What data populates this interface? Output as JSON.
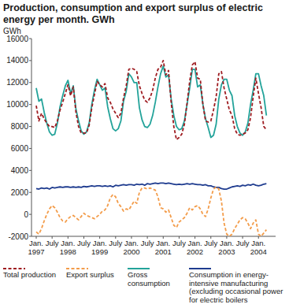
{
  "chart_data": {
    "type": "line",
    "title": "Production, consumption and export surplus of electric energy per month. GWh",
    "y_label": "GWh",
    "categories": [
      "Jan. 1997",
      null,
      null,
      null,
      null,
      null,
      "July",
      null,
      null,
      null,
      null,
      null,
      "Jan. 1998",
      null,
      null,
      null,
      null,
      null,
      "July",
      null,
      null,
      null,
      null,
      null,
      "Jan. 1999",
      null,
      null,
      null,
      null,
      null,
      "July",
      null,
      null,
      null,
      null,
      null,
      "Jan. 2000",
      null,
      null,
      null,
      null,
      null,
      "July",
      null,
      null,
      null,
      null,
      null,
      "Jan. 2001",
      null,
      null,
      null,
      null,
      null,
      "July",
      null,
      null,
      null,
      null,
      null,
      "Jan. 2002",
      null,
      null,
      null,
      null,
      null,
      "July",
      null,
      null,
      null,
      null,
      null,
      "Jan. 2003",
      null,
      null,
      null,
      null,
      null,
      "July",
      null,
      null,
      null,
      null,
      null,
      "Jan. 2004",
      null,
      null,
      null
    ],
    "series": [
      {
        "name": "Total production",
        "color": "#9e1b20",
        "line_style": "dashed",
        "values": [
          9900,
          8500,
          9200,
          8700,
          8300,
          8000,
          8000,
          7900,
          8500,
          9500,
          10200,
          11000,
          11800,
          10800,
          11600,
          9300,
          8000,
          7400,
          7400,
          7400,
          8100,
          9700,
          10900,
          12100,
          11800,
          11600,
          11900,
          10600,
          10200,
          9600,
          9200,
          8800,
          9200,
          10600,
          11700,
          13200,
          13300,
          13200,
          13000,
          11700,
          11000,
          10400,
          10200,
          10600,
          11300,
          12400,
          13200,
          13400,
          14000,
          12700,
          13100,
          10200,
          8000,
          6800,
          7000,
          7300,
          8200,
          10100,
          12100,
          13600,
          13900,
          12400,
          12300,
          10000,
          8500,
          8400,
          8500,
          9500,
          10700,
          12800,
          13000,
          11500,
          10500,
          9500,
          9000,
          7800,
          7300,
          7200,
          7300,
          7400,
          7700,
          8800,
          10700,
          12400,
          11000,
          9700,
          8000,
          7700
        ]
      },
      {
        "name": "Export surplus",
        "color": "#f39c4a",
        "line_style": "dashed",
        "values": [
          -1600,
          -1800,
          -1300,
          -600,
          0,
          500,
          800,
          600,
          200,
          -300,
          -600,
          -700,
          -400,
          -200,
          -100,
          -300,
          -500,
          -200,
          100,
          -100,
          -200,
          -300,
          -400,
          -200,
          0,
          300,
          400,
          800,
          1500,
          1800,
          1600,
          1000,
          700,
          300,
          500,
          400,
          800,
          1200,
          1000,
          2000,
          2400,
          2400,
          2300,
          2400,
          2300,
          2200,
          1600,
          600,
          500,
          200,
          400,
          -300,
          -1000,
          -1200,
          -700,
          -500,
          -300,
          100,
          600,
          400,
          700,
          800,
          500,
          0,
          -200,
          500,
          1500,
          2300,
          2500,
          2300,
          1200,
          -800,
          -1800,
          -2000,
          -1800,
          -1300,
          -900,
          -500,
          -300,
          -400,
          -800,
          -1300,
          -800,
          -500,
          -1800,
          -2000,
          -1700,
          -1400
        ]
      },
      {
        "name": "Gross consumption",
        "color": "#23a39a",
        "line_style": "solid",
        "values": [
          11500,
          10300,
          10500,
          9300,
          8300,
          7500,
          7200,
          7300,
          8300,
          9800,
          10800,
          11700,
          12200,
          11000,
          11700,
          9600,
          8500,
          7600,
          7300,
          7500,
          8300,
          10000,
          11300,
          12300,
          11800,
          11300,
          11500,
          9800,
          8700,
          7800,
          7600,
          7800,
          8500,
          10300,
          11200,
          12800,
          12500,
          12000,
          12000,
          9700,
          8600,
          8000,
          7900,
          8200,
          9000,
          10200,
          11600,
          12800,
          13500,
          12500,
          12700,
          10500,
          9000,
          8000,
          7700,
          7800,
          8500,
          10000,
          11500,
          13200,
          13200,
          11600,
          11800,
          10000,
          8700,
          7900,
          7000,
          7200,
          8200,
          10500,
          11800,
          12300,
          12300,
          11300,
          10800,
          9000,
          8000,
          7400,
          7200,
          7500,
          8300,
          10000,
          11300,
          12800,
          12800,
          11700,
          10800,
          9000
        ]
      },
      {
        "name": "Consumption in energy-intensive manufacturing (excluding occasional power for electric boilers",
        "color": "#1f3c8f",
        "line_style": "solid",
        "values": [
          2350,
          2300,
          2400,
          2350,
          2400,
          2300,
          2450,
          2400,
          2450,
          2500,
          2450,
          2500,
          2500,
          2450,
          2500,
          2450,
          2500,
          2450,
          2550,
          2500,
          2550,
          2600,
          2550,
          2600,
          2600,
          2550,
          2600,
          2550,
          2600,
          2500,
          2650,
          2600,
          2650,
          2700,
          2650,
          2700,
          2700,
          2650,
          2750,
          2700,
          2750,
          2650,
          2800,
          2750,
          2800,
          2850,
          2800,
          2850,
          2850,
          2800,
          2850,
          2800,
          2750,
          2700,
          2750,
          2700,
          2750,
          2800,
          2750,
          2800,
          2750,
          2700,
          2700,
          2650,
          2700,
          2600,
          2600,
          2500,
          2450,
          2450,
          2350,
          2300,
          2300,
          2400,
          2500,
          2550,
          2600,
          2550,
          2650,
          2600,
          2700,
          2650,
          2750,
          2650,
          2600,
          2650,
          2750,
          2800
        ]
      }
    ],
    "ylim": [
      -2000,
      16000
    ],
    "yticks": [
      -2000,
      0,
      2000,
      4000,
      6000,
      8000,
      10000,
      12000,
      14000,
      16000
    ],
    "grid": false,
    "legend": "bottom"
  }
}
